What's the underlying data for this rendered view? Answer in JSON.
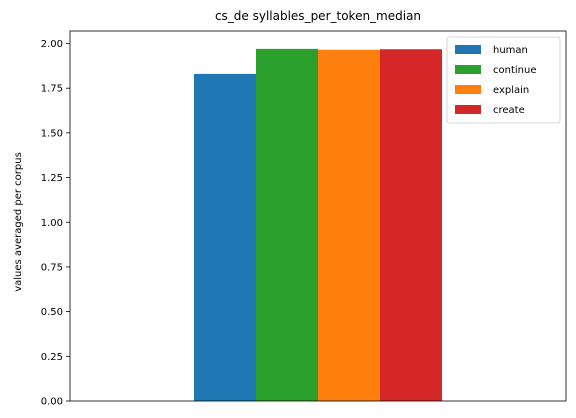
{
  "chart_data": {
    "type": "bar",
    "title": "cs_de syllables_per_token_median",
    "xlabel": "",
    "ylabel": "values averaged per corpus",
    "categories": [
      ""
    ],
    "series": [
      {
        "name": "human",
        "values": [
          1.83
        ],
        "color": "#1f77b4"
      },
      {
        "name": "continue",
        "values": [
          1.97
        ],
        "color": "#2ca02c"
      },
      {
        "name": "explain",
        "values": [
          1.965
        ],
        "color": "#ff7f0e"
      },
      {
        "name": "create",
        "values": [
          1.968
        ],
        "color": "#d62728"
      }
    ],
    "ylim": [
      0,
      2.07
    ],
    "yticks": [
      "0.00",
      "0.25",
      "0.50",
      "0.75",
      "1.00",
      "1.25",
      "1.50",
      "1.75",
      "2.00"
    ],
    "legend_position": "top-right",
    "grid": false
  }
}
